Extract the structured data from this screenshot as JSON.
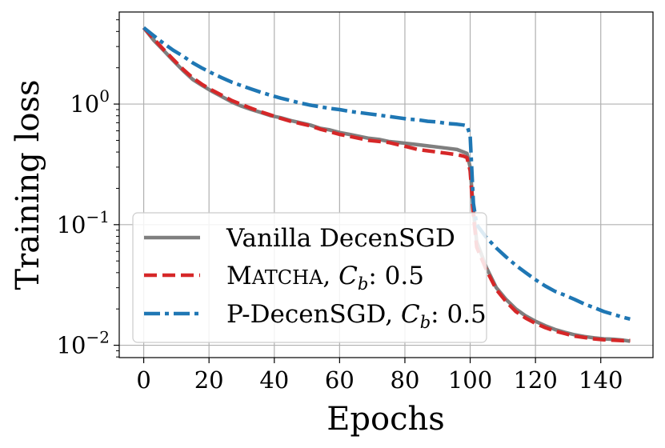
{
  "chart_data": {
    "type": "line",
    "xlabel": "Epochs",
    "ylabel": "Training loss",
    "yscale": "log",
    "xlim": [
      -7.5,
      156
    ],
    "ylim": [
      0.0079,
      5.8
    ],
    "grid": true,
    "legend_position": "lower-left",
    "x_ticks": [
      0,
      20,
      40,
      60,
      80,
      100,
      120,
      140
    ],
    "x_tick_labels": [
      "0",
      "20",
      "40",
      "60",
      "80",
      "100",
      "120",
      "140"
    ],
    "y_ticks": [
      0.01,
      0.1,
      1
    ],
    "y_tick_base": "10",
    "y_tick_exponents": [
      "−2",
      "−1",
      "0"
    ],
    "x": [
      0,
      3,
      6,
      9,
      12,
      15,
      18,
      21,
      24,
      27,
      30,
      33,
      36,
      39,
      42,
      45,
      48,
      51,
      54,
      57,
      60,
      63,
      66,
      69,
      72,
      75,
      78,
      81,
      84,
      87,
      90,
      93,
      96,
      98,
      99,
      100,
      101,
      102,
      105,
      108,
      111,
      114,
      117,
      120,
      123,
      126,
      129,
      132,
      135,
      138,
      141,
      144,
      147,
      149
    ],
    "series": [
      {
        "name": "Vanilla DecenSGD",
        "color": "#7f7f7f",
        "dash": "solid",
        "values": [
          4.3,
          3.4,
          2.8,
          2.3,
          1.9,
          1.6,
          1.42,
          1.27,
          1.15,
          1.04,
          0.96,
          0.9,
          0.85,
          0.8,
          0.77,
          0.73,
          0.7,
          0.67,
          0.63,
          0.61,
          0.58,
          0.56,
          0.54,
          0.52,
          0.51,
          0.49,
          0.48,
          0.47,
          0.46,
          0.45,
          0.44,
          0.43,
          0.42,
          0.4,
          0.39,
          0.3,
          0.13,
          0.072,
          0.044,
          0.03,
          0.024,
          0.02,
          0.0175,
          0.0158,
          0.0145,
          0.0135,
          0.0128,
          0.0122,
          0.0118,
          0.0115,
          0.0113,
          0.0112,
          0.011,
          0.0108
        ]
      },
      {
        "name_main": "Matcha",
        "name_suffix": ", ",
        "name_cb": "C",
        "name_sub": "b",
        "name_value": ": 0.5",
        "color": "#d62728",
        "dash": "dashed",
        "values": [
          4.3,
          3.5,
          2.85,
          2.35,
          1.95,
          1.65,
          1.45,
          1.3,
          1.18,
          1.07,
          0.99,
          0.92,
          0.86,
          0.81,
          0.76,
          0.72,
          0.69,
          0.66,
          0.62,
          0.59,
          0.56,
          0.54,
          0.52,
          0.5,
          0.49,
          0.48,
          0.46,
          0.44,
          0.42,
          0.41,
          0.4,
          0.39,
          0.38,
          0.37,
          0.36,
          0.28,
          0.12,
          0.065,
          0.042,
          0.029,
          0.023,
          0.019,
          0.0168,
          0.0152,
          0.014,
          0.0131,
          0.0125,
          0.0119,
          0.0116,
          0.0113,
          0.0111,
          0.011,
          0.0109,
          0.011
        ]
      },
      {
        "name_main": "P-DecenSGD",
        "name_suffix": ", ",
        "name_cb": "C",
        "name_sub": "b",
        "name_value": ": 0.5",
        "color": "#1f77b4",
        "dash": "dashdot",
        "values": [
          4.3,
          3.7,
          3.2,
          2.8,
          2.5,
          2.2,
          1.98,
          1.8,
          1.65,
          1.52,
          1.42,
          1.33,
          1.25,
          1.18,
          1.12,
          1.07,
          1.02,
          0.98,
          0.95,
          0.92,
          0.9,
          0.87,
          0.85,
          0.83,
          0.81,
          0.79,
          0.77,
          0.75,
          0.74,
          0.72,
          0.71,
          0.69,
          0.68,
          0.67,
          0.66,
          0.55,
          0.15,
          0.1,
          0.078,
          0.064,
          0.054,
          0.046,
          0.04,
          0.035,
          0.031,
          0.028,
          0.026,
          0.024,
          0.022,
          0.0205,
          0.019,
          0.018,
          0.017,
          0.0165
        ]
      }
    ],
    "legend": {
      "entries": [
        {
          "text": "Vanilla DecenSGD"
        },
        {
          "text_main": "Matcha",
          "text_suffix": ", ",
          "text_cb": "C",
          "text_sub": "b",
          "text_value": ": 0.5"
        },
        {
          "text_main": "P-DecenSGD",
          "text_suffix": ", ",
          "text_cb": "C",
          "text_sub": "b",
          "text_value": ": 0.5"
        }
      ]
    }
  }
}
